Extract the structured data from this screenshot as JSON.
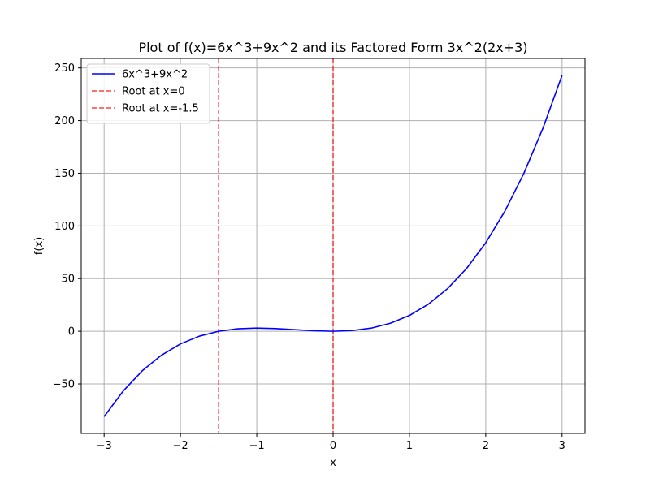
{
  "chart_data": {
    "type": "line",
    "title": "Plot of f(x)=6x^3+9x^2 and its Factored Form 3x^2(2x+3)",
    "xlabel": "x",
    "ylabel": "f(x)",
    "xlim": [
      -3.3,
      3.3
    ],
    "ylim": [
      -97,
      259
    ],
    "grid": true,
    "legend_position": "top-left",
    "x_ticks": [
      -3,
      -2,
      -1,
      0,
      1,
      2,
      3
    ],
    "x_tick_labels": [
      "−3",
      "−2",
      "−1",
      "0",
      "1",
      "2",
      "3"
    ],
    "y_ticks": [
      -50,
      0,
      50,
      100,
      150,
      200,
      250
    ],
    "y_tick_labels": [
      "−50",
      "0",
      "50",
      "100",
      "150",
      "200",
      "250"
    ],
    "series": [
      {
        "name": "6x^3+9x^2",
        "style": "solid",
        "color": "#0000ff",
        "x": [
          -3,
          -2.75,
          -2.5,
          -2.25,
          -2,
          -1.75,
          -1.5,
          -1.25,
          -1,
          -0.75,
          -0.5,
          -0.25,
          0,
          0.25,
          0.5,
          0.75,
          1,
          1.25,
          1.5,
          1.75,
          2,
          2.25,
          2.5,
          2.75,
          3
        ],
        "y": [
          -81,
          -56.72,
          -37.5,
          -22.78,
          -12,
          -4.59,
          0,
          2.34,
          3,
          2.53,
          1.5,
          0.47,
          0,
          0.66,
          3,
          7.59,
          15,
          25.78,
          40.5,
          59.72,
          84,
          113.91,
          150,
          192.84,
          243
        ]
      }
    ],
    "vlines": [
      {
        "name": "Root at x=0",
        "x": 0,
        "style": "dashed",
        "color": "#ff0000"
      },
      {
        "name": "Root at x=-1.5",
        "x": -1.5,
        "style": "dashed",
        "color": "#ff0000"
      }
    ]
  }
}
